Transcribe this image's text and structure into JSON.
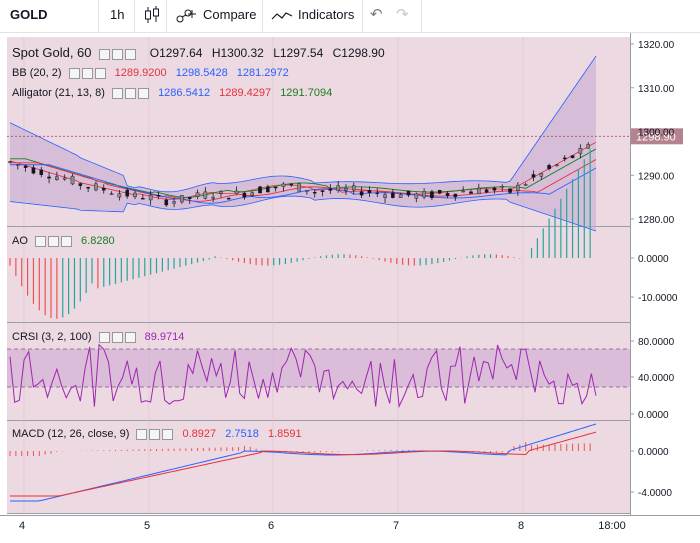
{
  "toolbar": {
    "symbol": "GOLD",
    "interval": "1h",
    "compare_label": "Compare",
    "indicators_label": "Indicators",
    "undo_icon": "undo-icon",
    "redo_icon": "redo-icon"
  },
  "main_legend": {
    "title": "Spot Gold, 60",
    "open": "O1297.64",
    "high": "H1300.32",
    "low": "L1297.54",
    "close": "C1298.90"
  },
  "bb_legend": {
    "label": "BB (20, 2)",
    "v1": "1289.9200",
    "c1": "#e5323a",
    "v2": "1298.5428",
    "c2": "#2962ff",
    "v3": "1281.2972",
    "c3": "#2962ff"
  },
  "alligator_legend": {
    "label": "Alligator (21, 13, 8)",
    "v1": "1286.5412",
    "c1": "#2962ff",
    "v2": "1289.4297",
    "c2": "#e5323a",
    "v3": "1291.7094",
    "c3": "#1b7f1b"
  },
  "ao_legend": {
    "label": "AO",
    "v1": "6.8280",
    "c1": "#1b7f1b"
  },
  "crsi_legend": {
    "label": "CRSI (3, 2, 100)",
    "v1": "89.9714",
    "c1": "#9c27b0"
  },
  "macd_legend": {
    "label": "MACD (12, 26, close, 9)",
    "v1": "0.8927",
    "c1": "#e5323a",
    "v2": "2.7518",
    "c2": "#2962ff",
    "v3": "1.8591",
    "c3": "#e5323a"
  },
  "price_axis": {
    "ticks": [
      "1320.00",
      "1310.00",
      "1300.00",
      "1290.00",
      "1280.00"
    ],
    "last_price": "1298.90"
  },
  "ao_axis": {
    "ticks": [
      "0.0000",
      "-10.0000"
    ]
  },
  "crsi_axis": {
    "ticks": [
      "80.0000",
      "40.0000",
      "0.0000"
    ]
  },
  "macd_axis": {
    "ticks": [
      "0.0000",
      "-4.0000"
    ]
  },
  "time_axis": {
    "ticks": [
      "4",
      "5",
      "6",
      "7",
      "8",
      "18:00"
    ]
  },
  "colors": {
    "pane_bg": "#ecd9e2",
    "bb_fill": "#c7a8d0",
    "candle_up": "#8c8c8c",
    "candle_down": "#131722",
    "ao_up": "#26a69a",
    "ao_down": "#ef5350",
    "crsi": "#9c27b0",
    "macd_line": "#2962ff",
    "signal_line": "#e5323a",
    "hist": "#ef5350"
  }
}
